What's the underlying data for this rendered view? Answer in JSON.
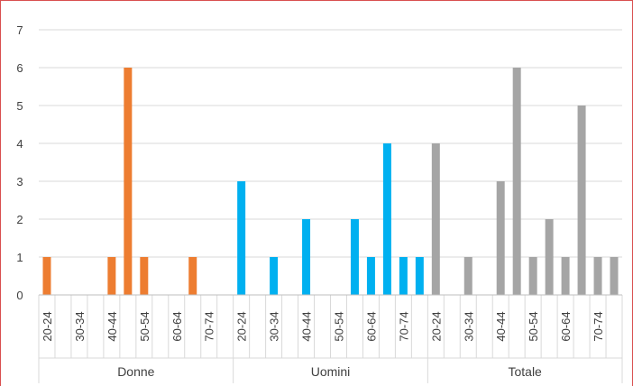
{
  "chart_data": {
    "type": "bar",
    "title": "",
    "xlabel": "",
    "ylabel": "",
    "ylim": [
      0,
      7
    ],
    "yticks": [
      "0",
      "1",
      "2",
      "3",
      "4",
      "5",
      "6",
      "7"
    ],
    "grid": true,
    "legend": "none",
    "category_labels": [
      "20-24",
      "",
      "30-34",
      "",
      "40-44",
      "",
      "50-54",
      "",
      "60-64",
      "",
      "70-74",
      ""
    ],
    "groups": [
      {
        "name": "Donne",
        "color": "#ED7D31",
        "values": [
          1,
          0,
          0,
          0,
          1,
          6,
          1,
          0,
          0,
          1,
          0,
          0
        ]
      },
      {
        "name": "Uomini",
        "color": "#00B0F0",
        "values": [
          3,
          0,
          1,
          0,
          2,
          0,
          0,
          2,
          1,
          4,
          1,
          1
        ]
      },
      {
        "name": "Totale",
        "color": "#A5A5A5",
        "values": [
          4,
          0,
          1,
          0,
          3,
          6,
          1,
          2,
          1,
          5,
          1,
          1
        ]
      }
    ]
  }
}
